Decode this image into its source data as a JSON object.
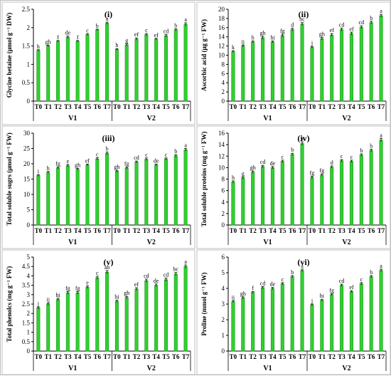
{
  "figure": {
    "bar_color": "#2fd12f",
    "bar_edge_color": "#1f8f1f",
    "error_bar_color": "#000000"
  },
  "chart_data": [
    {
      "type": "bar",
      "panel_label": "(i)",
      "ylabel": "Glycine betaine (μmol g⁻¹ DW)",
      "ylim": [
        0,
        2.5
      ],
      "yticks": [
        "0",
        "0.5",
        "1",
        "1.5",
        "2",
        "2.5"
      ],
      "yticks_values": [
        0,
        0.5,
        1,
        1.5,
        2,
        2.5
      ],
      "groups": [
        "V1",
        "V2"
      ],
      "categories": [
        "T0",
        "T1",
        "T2",
        "T3",
        "T4",
        "T5",
        "T6",
        "T7"
      ],
      "series": [
        {
          "values": [
            1.38,
            1.5,
            1.63,
            1.74,
            1.63,
            1.81,
            1.94,
            2.12
          ],
          "errors": [
            0.02,
            0.02,
            0.02,
            0.03,
            0.02,
            0.02,
            0.02,
            0.03
          ],
          "letters": [
            "h",
            "gh",
            "f",
            "de",
            "f",
            "c",
            "b",
            "a"
          ]
        },
        {
          "values": [
            1.41,
            1.53,
            1.69,
            1.81,
            1.69,
            1.78,
            1.94,
            2.09
          ],
          "errors": [
            0.02,
            0.03,
            0.03,
            0.03,
            0.02,
            0.03,
            0.03,
            0.04
          ],
          "letters": [
            "h",
            "g",
            "ef",
            "c",
            "ef",
            "cd",
            "b",
            "a"
          ]
        }
      ],
      "grid": false
    },
    {
      "type": "bar",
      "panel_label": "(ii)",
      "ylabel": "Ascorbic acid (μg g⁻¹ FW)",
      "ylim": [
        0,
        20
      ],
      "yticks": [
        "0",
        "2",
        "4",
        "6",
        "8",
        "10",
        "12",
        "14",
        "16",
        "18",
        "20"
      ],
      "yticks_values": [
        0,
        2,
        4,
        6,
        8,
        10,
        12,
        14,
        16,
        18,
        20
      ],
      "groups": [
        "V1",
        "V2"
      ],
      "categories": [
        "T0",
        "T1",
        "T2",
        "T3",
        "T4",
        "T5",
        "T6",
        "T7"
      ],
      "series": [
        {
          "values": [
            10.8,
            12.0,
            12.9,
            13.8,
            12.9,
            14.3,
            15.6,
            16.8
          ],
          "errors": [
            0.2,
            0.2,
            0.2,
            0.3,
            0.2,
            0.3,
            0.3,
            0.3
          ],
          "letters": [
            "k",
            "ij",
            "h",
            "gh",
            "hi",
            "fg",
            "d",
            "bc"
          ]
        },
        {
          "values": [
            11.7,
            13.6,
            14.4,
            15.6,
            14.7,
            16.1,
            17.1,
            18.6
          ],
          "errors": [
            0.2,
            0.3,
            0.3,
            0.3,
            0.3,
            0.3,
            0.3,
            0.3
          ],
          "letters": [
            "j",
            "gh",
            "ef",
            "cd",
            "ef",
            "cd",
            "b",
            "a"
          ]
        }
      ],
      "grid": false
    },
    {
      "type": "bar",
      "panel_label": "(iii)",
      "ylabel": "Total soluble sugrs (μmol g⁻¹ FW)",
      "ylim": [
        0,
        30
      ],
      "yticks": [
        "0",
        "5",
        "10",
        "15",
        "20",
        "25",
        "30"
      ],
      "yticks_values": [
        0,
        5,
        10,
        15,
        20,
        25,
        30
      ],
      "groups": [
        "V1",
        "V2"
      ],
      "categories": [
        "T0",
        "T1",
        "T2",
        "T3",
        "T4",
        "T5",
        "T6",
        "T7"
      ],
      "series": [
        {
          "values": [
            16.2,
            17.2,
            18.6,
            19.4,
            18.2,
            19.6,
            21.6,
            23.4
          ],
          "errors": [
            0.3,
            0.3,
            0.3,
            0.4,
            0.3,
            0.3,
            0.4,
            0.4
          ],
          "letters": [
            "i",
            "h",
            "fg",
            "e",
            "gh",
            "ef",
            "c",
            "b"
          ]
        },
        {
          "values": [
            17.6,
            18.6,
            20.6,
            21.5,
            19.6,
            21.6,
            22.6,
            24.6
          ],
          "errors": [
            0.3,
            0.3,
            0.3,
            0.4,
            0.3,
            0.3,
            0.4,
            0.4
          ],
          "letters": [
            "gh",
            "fg",
            "cd",
            "c",
            "de",
            "c",
            "b",
            "a"
          ]
        }
      ],
      "grid": false
    },
    {
      "type": "bar",
      "panel_label": "(iv)",
      "ylabel": "Total soluble proteins (mg g⁻¹ FW)",
      "ylim": [
        0,
        16
      ],
      "yticks": [
        "0",
        "2",
        "4",
        "6",
        "8",
        "10",
        "12",
        "14",
        "16"
      ],
      "yticks_values": [
        0,
        2,
        4,
        6,
        8,
        10,
        12,
        14,
        16
      ],
      "groups": [
        "V1",
        "V2"
      ],
      "categories": [
        "T0",
        "T1",
        "T2",
        "T3",
        "T4",
        "T5",
        "T6",
        "T7"
      ],
      "series": [
        {
          "values": [
            7.5,
            8.2,
            9.2,
            10.2,
            10.0,
            11.1,
            12.3,
            14.2
          ],
          "errors": [
            0.2,
            0.2,
            0.2,
            0.2,
            0.2,
            0.2,
            0.2,
            0.3
          ],
          "letters": [
            "h",
            "g",
            "gh",
            "cd",
            "de",
            "c",
            "b",
            "a"
          ]
        },
        {
          "values": [
            8.3,
            8.7,
            10.1,
            11.2,
            11.1,
            12.2,
            13.0,
            14.8
          ],
          "errors": [
            0.2,
            0.2,
            0.2,
            0.2,
            0.2,
            0.2,
            0.2,
            0.3
          ],
          "letters": [
            "fg",
            "fg",
            "d",
            "c",
            "c",
            "b",
            "b",
            "a"
          ]
        }
      ],
      "grid": false
    },
    {
      "type": "bar",
      "panel_label": "(v)",
      "ylabel": "Total phenolcs (mg g⁻¹ FW)",
      "ylim": [
        0,
        5
      ],
      "yticks": [
        "0",
        "0.5",
        "1",
        "1.5",
        "2",
        "2.5",
        "3",
        "3.5",
        "4",
        "4.5",
        "5"
      ],
      "yticks_values": [
        0,
        0.5,
        1,
        1.5,
        2,
        2.5,
        3,
        3.5,
        4,
        4.5,
        5
      ],
      "groups": [
        "V1",
        "V2"
      ],
      "categories": [
        "T0",
        "T1",
        "T2",
        "T3",
        "T4",
        "T5",
        "T6",
        "T7"
      ],
      "series": [
        {
          "values": [
            2.3,
            2.5,
            2.75,
            3.1,
            3.1,
            3.4,
            3.9,
            4.2
          ],
          "errors": [
            0.05,
            0.06,
            0.06,
            0.07,
            0.07,
            0.07,
            0.08,
            0.08
          ],
          "letters": [
            "j",
            "ij",
            "hi",
            "fg",
            "fg",
            "e",
            "c",
            "ab"
          ]
        },
        {
          "values": [
            2.65,
            2.85,
            3.3,
            3.75,
            3.5,
            3.8,
            4.1,
            4.5
          ],
          "errors": [
            0.06,
            0.06,
            0.07,
            0.08,
            0.07,
            0.08,
            0.08,
            0.08
          ],
          "letters": [
            "hi",
            "gh",
            "ef",
            "cd",
            "de",
            "cd",
            "bc",
            "a"
          ]
        }
      ],
      "grid": false
    },
    {
      "type": "bar",
      "panel_label": "(vi)",
      "ylabel": "Proline (mmol g⁻¹ FW)",
      "ylim": [
        0,
        6
      ],
      "yticks": [
        "0",
        "1",
        "2",
        "3",
        "4",
        "5",
        "6"
      ],
      "yticks_values": [
        0,
        1,
        2,
        3,
        4,
        5,
        6
      ],
      "groups": [
        "V1",
        "V2"
      ],
      "categories": [
        "T0",
        "T1",
        "T2",
        "T3",
        "T4",
        "T5",
        "T6",
        "T7"
      ],
      "series": [
        {
          "values": [
            3.15,
            3.4,
            3.75,
            4.05,
            4.0,
            4.3,
            4.75,
            5.15
          ],
          "errors": [
            0.05,
            0.06,
            0.06,
            0.07,
            0.06,
            0.07,
            0.07,
            0.08
          ],
          "letters": [
            "ij",
            "gh",
            "f",
            "cd",
            "de",
            "c",
            "b",
            "a"
          ]
        },
        {
          "values": [
            2.95,
            3.25,
            3.6,
            4.2,
            3.8,
            4.3,
            4.75,
            5.15
          ],
          "errors": [
            0.05,
            0.06,
            0.06,
            0.07,
            0.06,
            0.07,
            0.07,
            0.08
          ],
          "letters": [
            "j",
            "hi",
            "fg",
            "cd",
            "ef",
            "c",
            "b",
            "a"
          ]
        }
      ],
      "grid": false
    }
  ]
}
